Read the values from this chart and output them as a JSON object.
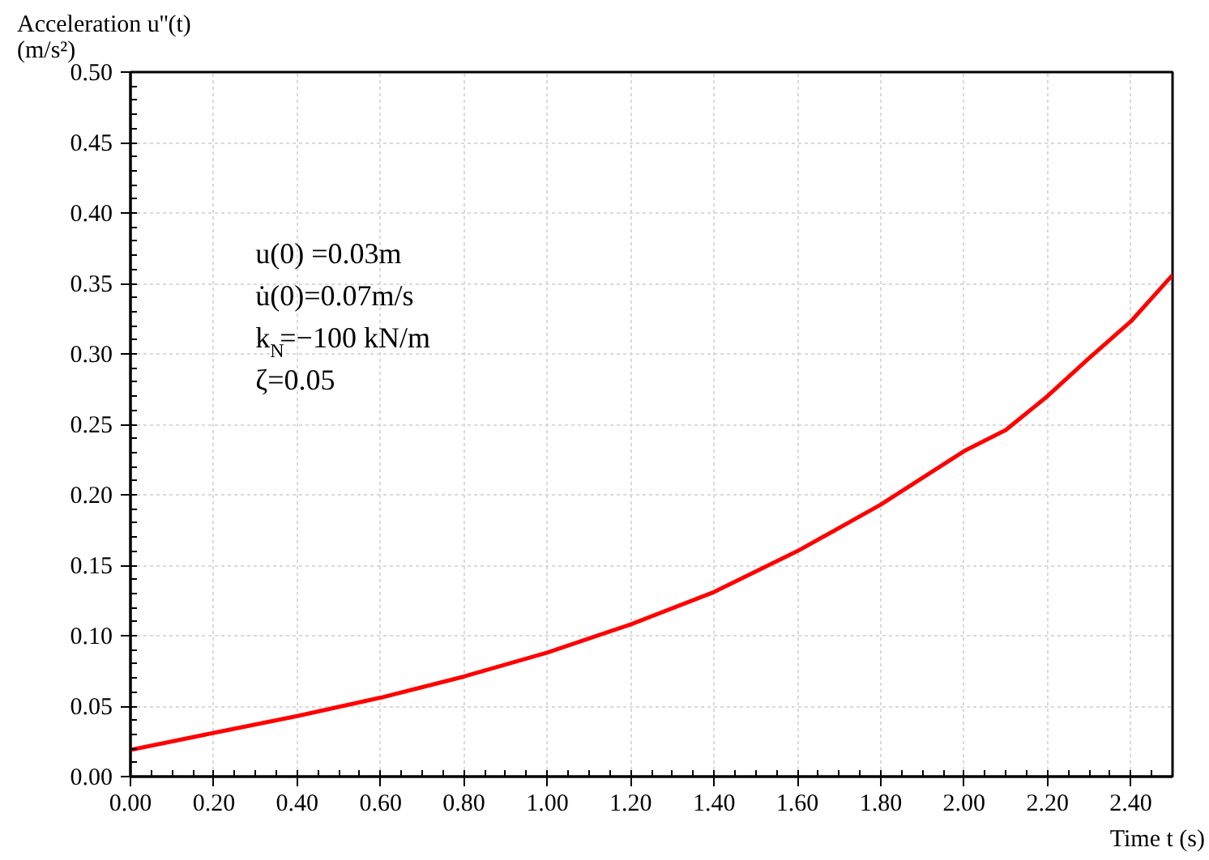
{
  "chart_data": {
    "type": "line",
    "ylabel": "Acceleration u''(t)\n(m/s²)",
    "xlabel": "Time t (s)",
    "x": [
      0,
      0.2,
      0.4,
      0.6,
      0.8,
      1.0,
      1.2,
      1.4,
      1.6,
      1.8,
      2.0,
      2.1,
      2.2,
      2.3,
      2.4,
      2.5
    ],
    "series": [
      {
        "color": "#ff0000",
        "values": [
          0.019,
          0.031,
          0.043,
          0.056,
          0.071,
          0.088,
          0.108,
          0.131,
          0.16,
          0.193,
          0.231,
          0.246,
          0.27,
          0.297,
          0.323,
          0.356
        ]
      }
    ],
    "xlim": [
      0,
      2.5
    ],
    "ylim": [
      0,
      0.5
    ],
    "xticks": [
      {
        "value": 0,
        "label": "0.00"
      },
      {
        "value": 0.2,
        "label": "0.20"
      },
      {
        "value": 0.4,
        "label": "0.40"
      },
      {
        "value": 0.6,
        "label": "0.60"
      },
      {
        "value": 0.8,
        "label": "0.80"
      },
      {
        "value": 1.0,
        "label": "1.00"
      },
      {
        "value": 1.2,
        "label": "1.20"
      },
      {
        "value": 1.4,
        "label": "1.40"
      },
      {
        "value": 1.6,
        "label": "1.60"
      },
      {
        "value": 1.8,
        "label": "1.80"
      },
      {
        "value": 2.0,
        "label": "2.00"
      },
      {
        "value": 2.2,
        "label": "2.20"
      },
      {
        "value": 2.4,
        "label": "2.40"
      }
    ],
    "yticks": [
      {
        "value": 0,
        "label": "0.00"
      },
      {
        "value": 0.05,
        "label": "0.05"
      },
      {
        "value": 0.1,
        "label": "0.10"
      },
      {
        "value": 0.15,
        "label": "0.15"
      },
      {
        "value": 0.2,
        "label": "0.20"
      },
      {
        "value": 0.25,
        "label": "0.25"
      },
      {
        "value": 0.3,
        "label": "0.30"
      },
      {
        "value": 0.35,
        "label": "0.35"
      },
      {
        "value": 0.4,
        "label": "0.40"
      },
      {
        "value": 0.45,
        "label": "0.45"
      },
      {
        "value": 0.5,
        "label": "0.50"
      }
    ],
    "annotations": [
      "u(0) =0.03m",
      "u̇(0)=0.07m/s",
      "k$_{N}$=−100  kN/m",
      "ζ=0.05"
    ],
    "grid": true,
    "marker": "none",
    "line_style": "solid"
  }
}
